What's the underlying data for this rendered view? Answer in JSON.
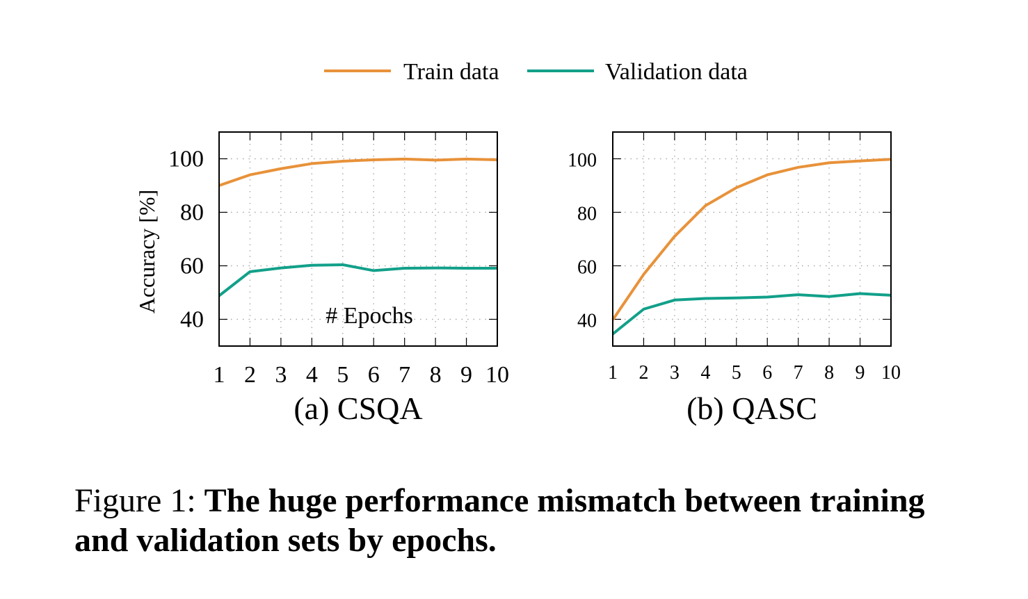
{
  "figure": {
    "caption_prefix": "Figure 1:",
    "caption_text": "The huge performance mismatch between training and validation sets by epochs."
  },
  "colors": {
    "train": "#e8923a",
    "validation": "#12a08a",
    "grid": "#a8a8a8"
  },
  "chart_data": [
    {
      "type": "line",
      "panel_label": "(a) CSQA",
      "annotation": "# Epochs",
      "ylabel": "Accuracy [%]",
      "xlabel": "",
      "x": [
        1,
        2,
        3,
        4,
        5,
        6,
        7,
        8,
        9,
        10
      ],
      "xticks": [
        "1",
        "2",
        "3",
        "4",
        "5",
        "6",
        "7",
        "8",
        "9",
        "10"
      ],
      "yticks": [
        "40",
        "60",
        "80",
        "100"
      ],
      "xlim": [
        1,
        10
      ],
      "ylim": [
        30,
        110
      ],
      "grid": true,
      "legend": "top-center",
      "series": [
        {
          "name": "Train data",
          "values": [
            90,
            94,
            96.3,
            98.2,
            99.1,
            99.6,
            99.9,
            99.5,
            99.9,
            99.6
          ]
        },
        {
          "name": "Validation data",
          "values": [
            48.8,
            57.8,
            59.2,
            60.2,
            60.4,
            58.2,
            59.1,
            59.2,
            59.1,
            59.1
          ]
        }
      ]
    },
    {
      "type": "line",
      "panel_label": "(b) QASC",
      "ylabel": "",
      "xlabel": "",
      "x": [
        1,
        2,
        3,
        4,
        5,
        6,
        7,
        8,
        9,
        10
      ],
      "xticks": [
        "1",
        "2",
        "3",
        "4",
        "5",
        "6",
        "7",
        "8",
        "9",
        "10"
      ],
      "yticks": [
        "40",
        "60",
        "80",
        "100"
      ],
      "xlim": [
        1,
        10
      ],
      "ylim": [
        30,
        110
      ],
      "grid": true,
      "series": [
        {
          "name": "Train data",
          "values": [
            39.8,
            56.8,
            71,
            82.5,
            89.2,
            94,
            96.8,
            98.5,
            99.2,
            99.8
          ]
        },
        {
          "name": "Validation data",
          "values": [
            34.5,
            43.8,
            47.2,
            47.8,
            48,
            48.3,
            49.2,
            48.5,
            49.6,
            49
          ]
        }
      ]
    }
  ]
}
